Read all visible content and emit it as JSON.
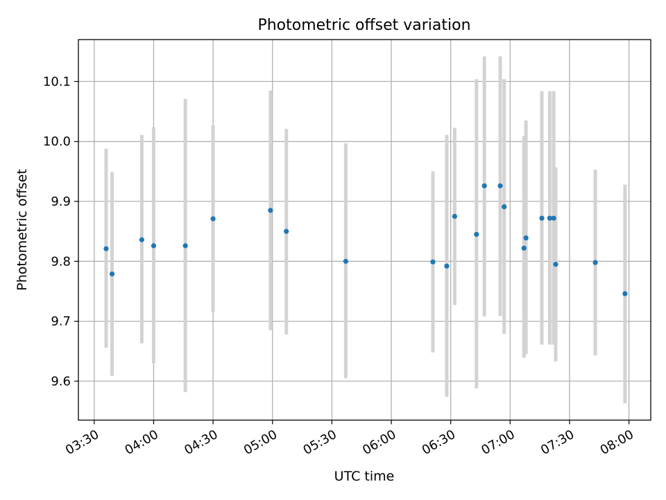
{
  "chart_data": {
    "type": "scatter",
    "title": "Photometric offset variation",
    "xlabel": "UTC time",
    "ylabel": "Photometric offset",
    "x_ticks": [
      "03:30",
      "04:00",
      "04:30",
      "05:00",
      "05:30",
      "06:00",
      "06:30",
      "07:00",
      "07:30",
      "08:00"
    ],
    "y_ticks": [
      "9.6",
      "9.7",
      "9.8",
      "9.9",
      "10.0",
      "10.1"
    ],
    "xlim": [
      "03:22",
      "08:11"
    ],
    "ylim": [
      9.535,
      10.17
    ],
    "grid": true,
    "marker_color": "#1f77b4",
    "errorbar_color": "#d3d3d3",
    "series": [
      {
        "x": [
          "03:36",
          "03:39",
          "03:54",
          "04:00",
          "04:16",
          "04:30",
          "04:59",
          "05:07",
          "05:37",
          "06:21",
          "06:28",
          "06:32",
          "06:43",
          "06:47",
          "06:55",
          "06:57",
          "07:07",
          "07:08",
          "07:16",
          "07:20",
          "07:22",
          "07:23",
          "07:43",
          "07:58"
        ],
        "y": [
          9.821,
          9.779,
          9.836,
          9.826,
          9.826,
          9.871,
          9.885,
          9.85,
          9.8,
          9.799,
          9.792,
          9.875,
          9.845,
          9.926,
          9.926,
          9.891,
          9.822,
          9.839,
          9.872,
          9.872,
          9.872,
          9.795,
          9.798,
          9.746
        ],
        "y_low": [
          9.656,
          9.609,
          9.663,
          9.63,
          9.582,
          9.715,
          9.685,
          9.678,
          9.605,
          9.648,
          9.574,
          9.727,
          9.588,
          9.708,
          9.709,
          9.679,
          9.639,
          9.645,
          9.661,
          9.661,
          9.661,
          9.633,
          9.643,
          9.563
        ],
        "y_high": [
          9.988,
          9.949,
          10.011,
          10.024,
          10.071,
          10.027,
          10.085,
          10.021,
          9.997,
          9.95,
          10.011,
          10.023,
          10.104,
          10.142,
          10.142,
          10.104,
          10.009,
          10.035,
          10.084,
          10.084,
          10.084,
          9.957,
          9.953,
          9.928
        ]
      }
    ]
  }
}
